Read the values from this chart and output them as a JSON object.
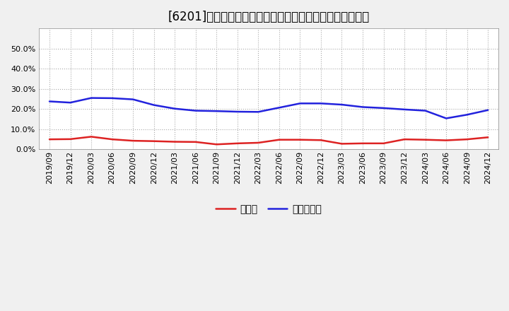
{
  "title": "[6201]　現須金、有利子負債の総資産に対する比率の推移",
  "x_labels": [
    "2019/09",
    "2019/12",
    "2020/03",
    "2020/06",
    "2020/09",
    "2020/12",
    "2021/03",
    "2021/06",
    "2021/09",
    "2021/12",
    "2022/03",
    "2022/06",
    "2022/09",
    "2022/12",
    "2023/03",
    "2023/06",
    "2023/09",
    "2023/12",
    "2024/03",
    "2024/06",
    "2024/09",
    "2024/12"
  ],
  "cash": [
    0.05,
    0.051,
    0.063,
    0.05,
    0.043,
    0.041,
    0.038,
    0.037,
    0.025,
    0.03,
    0.033,
    0.048,
    0.048,
    0.046,
    0.028,
    0.03,
    0.03,
    0.05,
    0.048,
    0.045,
    0.05,
    0.06
  ],
  "debt": [
    0.238,
    0.232,
    0.255,
    0.254,
    0.248,
    0.22,
    0.202,
    0.192,
    0.19,
    0.187,
    0.186,
    0.207,
    0.228,
    0.228,
    0.222,
    0.21,
    0.205,
    0.198,
    0.192,
    0.154,
    0.172,
    0.195
  ],
  "cash_color": "#dd2222",
  "debt_color": "#2222dd",
  "background_color": "#f0f0f0",
  "plot_bg_color": "#ffffff",
  "grid_color": "#aaaaaa",
  "ylim": [
    0.0,
    0.6
  ],
  "yticks": [
    0.0,
    0.1,
    0.2,
    0.3,
    0.4,
    0.5
  ],
  "legend_cash": "現須金",
  "legend_debt": "有利子負債",
  "title_fontsize": 12,
  "legend_fontsize": 10,
  "tick_fontsize": 8
}
